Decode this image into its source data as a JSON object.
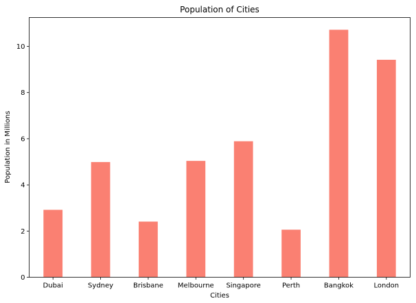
{
  "chart_data": {
    "type": "bar",
    "title": "Population of Cities",
    "xlabel": "Cities",
    "ylabel": "Population in Millions",
    "categories": [
      "Dubai",
      "Sydney",
      "Brisbane",
      "Melbourne",
      "Singapore",
      "Perth",
      "Bangkok",
      "London"
    ],
    "values": [
      2.92,
      4.99,
      2.41,
      5.04,
      5.89,
      2.06,
      10.72,
      9.42
    ],
    "ylim": [
      0,
      11.25
    ],
    "yticks": [
      0,
      2,
      4,
      6,
      8,
      10
    ],
    "grid": false,
    "bar_color": "#fa8072"
  }
}
